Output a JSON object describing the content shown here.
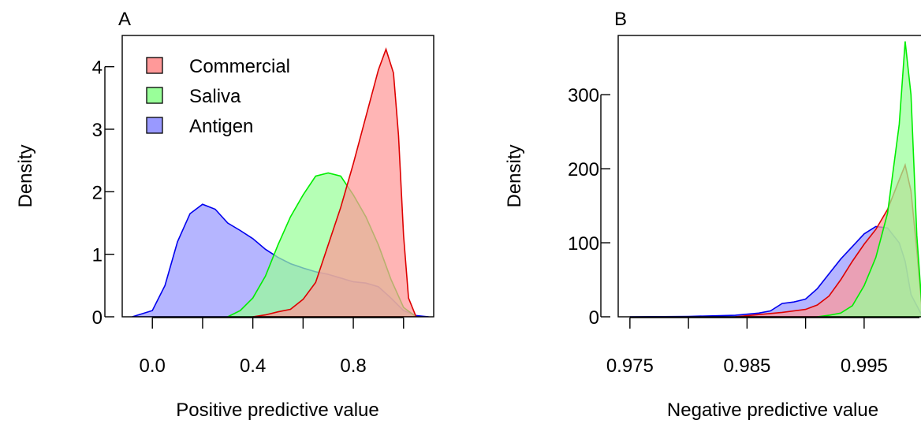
{
  "chart_data": [
    {
      "type": "area",
      "panel_label": "A",
      "xlabel": "Positive predictive value",
      "ylabel": "Density",
      "xlim": [
        -0.12,
        1.12
      ],
      "ylim": [
        0,
        4.5
      ],
      "xticks": [
        0.0,
        0.2,
        0.4,
        0.6,
        0.8,
        1.0
      ],
      "xtick_labels": [
        "0.0",
        "",
        "0.4",
        "",
        "0.8",
        ""
      ],
      "yticks": [
        0,
        1,
        2,
        3,
        4
      ],
      "ytick_labels": [
        "0",
        "1",
        "2",
        "3",
        "4"
      ],
      "legend": {
        "position": "top-left"
      },
      "series": [
        {
          "name": "Antigen",
          "fill": "#9999ff",
          "stroke": "#0000ee",
          "x": [
            -0.08,
            0.0,
            0.05,
            0.1,
            0.15,
            0.2,
            0.25,
            0.3,
            0.35,
            0.4,
            0.45,
            0.5,
            0.55,
            0.6,
            0.65,
            0.7,
            0.75,
            0.8,
            0.85,
            0.9,
            0.95,
            1.0,
            1.05,
            1.1
          ],
          "y": [
            0.0,
            0.1,
            0.5,
            1.2,
            1.65,
            1.8,
            1.72,
            1.5,
            1.38,
            1.25,
            1.08,
            0.95,
            0.85,
            0.78,
            0.72,
            0.68,
            0.62,
            0.56,
            0.54,
            0.48,
            0.3,
            0.1,
            0.02,
            0.0
          ]
        },
        {
          "name": "Saliva",
          "fill": "#99ff99",
          "stroke": "#00ee00",
          "x": [
            0.3,
            0.35,
            0.4,
            0.45,
            0.5,
            0.55,
            0.6,
            0.65,
            0.7,
            0.75,
            0.8,
            0.85,
            0.9,
            0.95,
            1.0,
            1.05
          ],
          "y": [
            0.0,
            0.1,
            0.3,
            0.65,
            1.15,
            1.6,
            1.95,
            2.25,
            2.3,
            2.25,
            1.95,
            1.6,
            1.15,
            0.6,
            0.15,
            0.0
          ]
        },
        {
          "name": "Commercial",
          "fill": "#ff9999",
          "stroke": "#dd0000",
          "x": [
            0.4,
            0.45,
            0.5,
            0.55,
            0.6,
            0.65,
            0.7,
            0.75,
            0.8,
            0.85,
            0.9,
            0.93,
            0.96,
            0.98,
            1.0,
            1.02,
            1.05
          ],
          "y": [
            0.0,
            0.03,
            0.08,
            0.12,
            0.28,
            0.55,
            1.15,
            1.75,
            2.45,
            3.2,
            3.95,
            4.28,
            3.9,
            2.9,
            1.3,
            0.3,
            0.0
          ]
        }
      ]
    },
    {
      "type": "area",
      "panel_label": "B",
      "xlabel": "Negative predictive value",
      "ylabel": "Density",
      "xlim": [
        0.974,
        1.001
      ],
      "ylim": [
        0,
        380
      ],
      "xticks": [
        0.975,
        0.98,
        0.985,
        0.99,
        0.995,
        1.0
      ],
      "xtick_labels": [
        "0.975",
        "",
        "0.985",
        "",
        "0.995",
        ""
      ],
      "yticks": [
        0,
        100,
        200,
        300
      ],
      "ytick_labels": [
        "0",
        "100",
        "200",
        "300"
      ],
      "series": [
        {
          "name": "Antigen",
          "fill": "#9999ff",
          "stroke": "#0000ee",
          "x": [
            0.975,
            0.98,
            0.984,
            0.986,
            0.987,
            0.988,
            0.989,
            0.99,
            0.991,
            0.992,
            0.993,
            0.994,
            0.995,
            0.996,
            0.997,
            0.998,
            0.9985,
            0.999,
            1.0
          ],
          "y": [
            0,
            0.5,
            2,
            5,
            8,
            18,
            20,
            24,
            38,
            58,
            78,
            95,
            112,
            122,
            120,
            100,
            75,
            30,
            0
          ]
        },
        {
          "name": "Commercial",
          "fill": "#ff9999",
          "stroke": "#dd0000",
          "x": [
            0.984,
            0.986,
            0.988,
            0.99,
            0.991,
            0.992,
            0.993,
            0.994,
            0.995,
            0.996,
            0.997,
            0.998,
            0.9985,
            0.999,
            0.9995,
            1.0
          ],
          "y": [
            0,
            3,
            6,
            10,
            16,
            28,
            50,
            75,
            98,
            118,
            145,
            185,
            205,
            170,
            90,
            0
          ]
        },
        {
          "name": "Saliva",
          "fill": "#99ff99",
          "stroke": "#00ee00",
          "x": [
            0.991,
            0.992,
            0.993,
            0.994,
            0.995,
            0.996,
            0.997,
            0.998,
            0.9985,
            0.999,
            0.9995,
            1.0
          ],
          "y": [
            0,
            2,
            5,
            15,
            42,
            80,
            140,
            260,
            372,
            300,
            110,
            0
          ]
        }
      ]
    }
  ]
}
